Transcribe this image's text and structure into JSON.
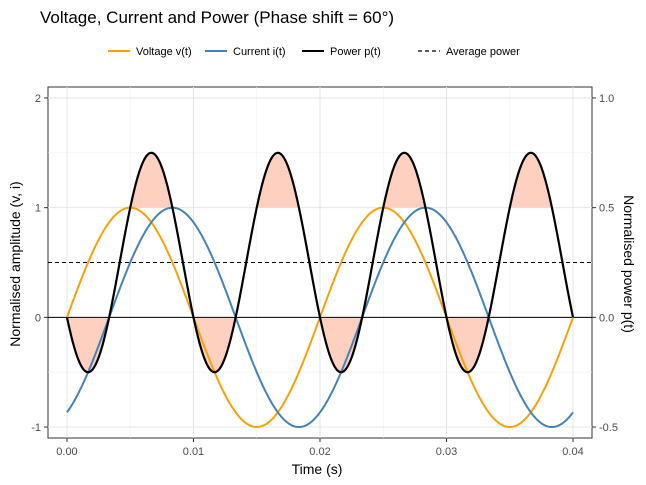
{
  "chart_data": {
    "type": "line",
    "title": "Voltage, Current and Power (Phase shift = 60°)",
    "xlabel": "Time (s)",
    "ylabel": "Normalised amplitude (v, i)",
    "y2label": "Normalised power p(t)",
    "xlim": [
      -0.0015,
      0.0415
    ],
    "ylim": [
      -1.1,
      2.1
    ],
    "y2lim": [
      -0.55,
      1.05
    ],
    "x_ticks": [
      0.0,
      0.01,
      0.02,
      0.03,
      0.04
    ],
    "x_tick_labels": [
      "0.00",
      "0.01",
      "0.02",
      "0.03",
      "0.04"
    ],
    "y_ticks": [
      -1,
      0,
      1,
      2
    ],
    "y_tick_labels": [
      "-1",
      "0",
      "1",
      "2"
    ],
    "y2_ticks": [
      -0.5,
      0.0,
      0.5,
      1.0
    ],
    "y2_tick_labels": [
      "-0.5",
      "0.0",
      "0.5",
      "1.0"
    ],
    "grid": true,
    "legend_position": "top",
    "frequency_hz": 50,
    "phase_shift_deg": 60,
    "series": [
      {
        "name": "Voltage v(t)",
        "color": "#f5a20a",
        "style": "solid",
        "formula": "sin(2*pi*50*t)"
      },
      {
        "name": "Current i(t)",
        "color": "#4682b4",
        "style": "solid",
        "formula": "sin(2*pi*50*t - 60deg)"
      },
      {
        "name": "Power p(t)",
        "color": "#000000",
        "style": "solid",
        "formula": "v(t)*i(t)",
        "axis": "right"
      },
      {
        "name": "Average power",
        "color": "#000000",
        "style": "dashed",
        "value": 0.25,
        "axis": "right"
      }
    ],
    "shaded_regions": {
      "color": "#fdd0c0",
      "description": "power above 0.5 and below 0",
      "thresholds": [
        0.5,
        0.0
      ]
    }
  }
}
